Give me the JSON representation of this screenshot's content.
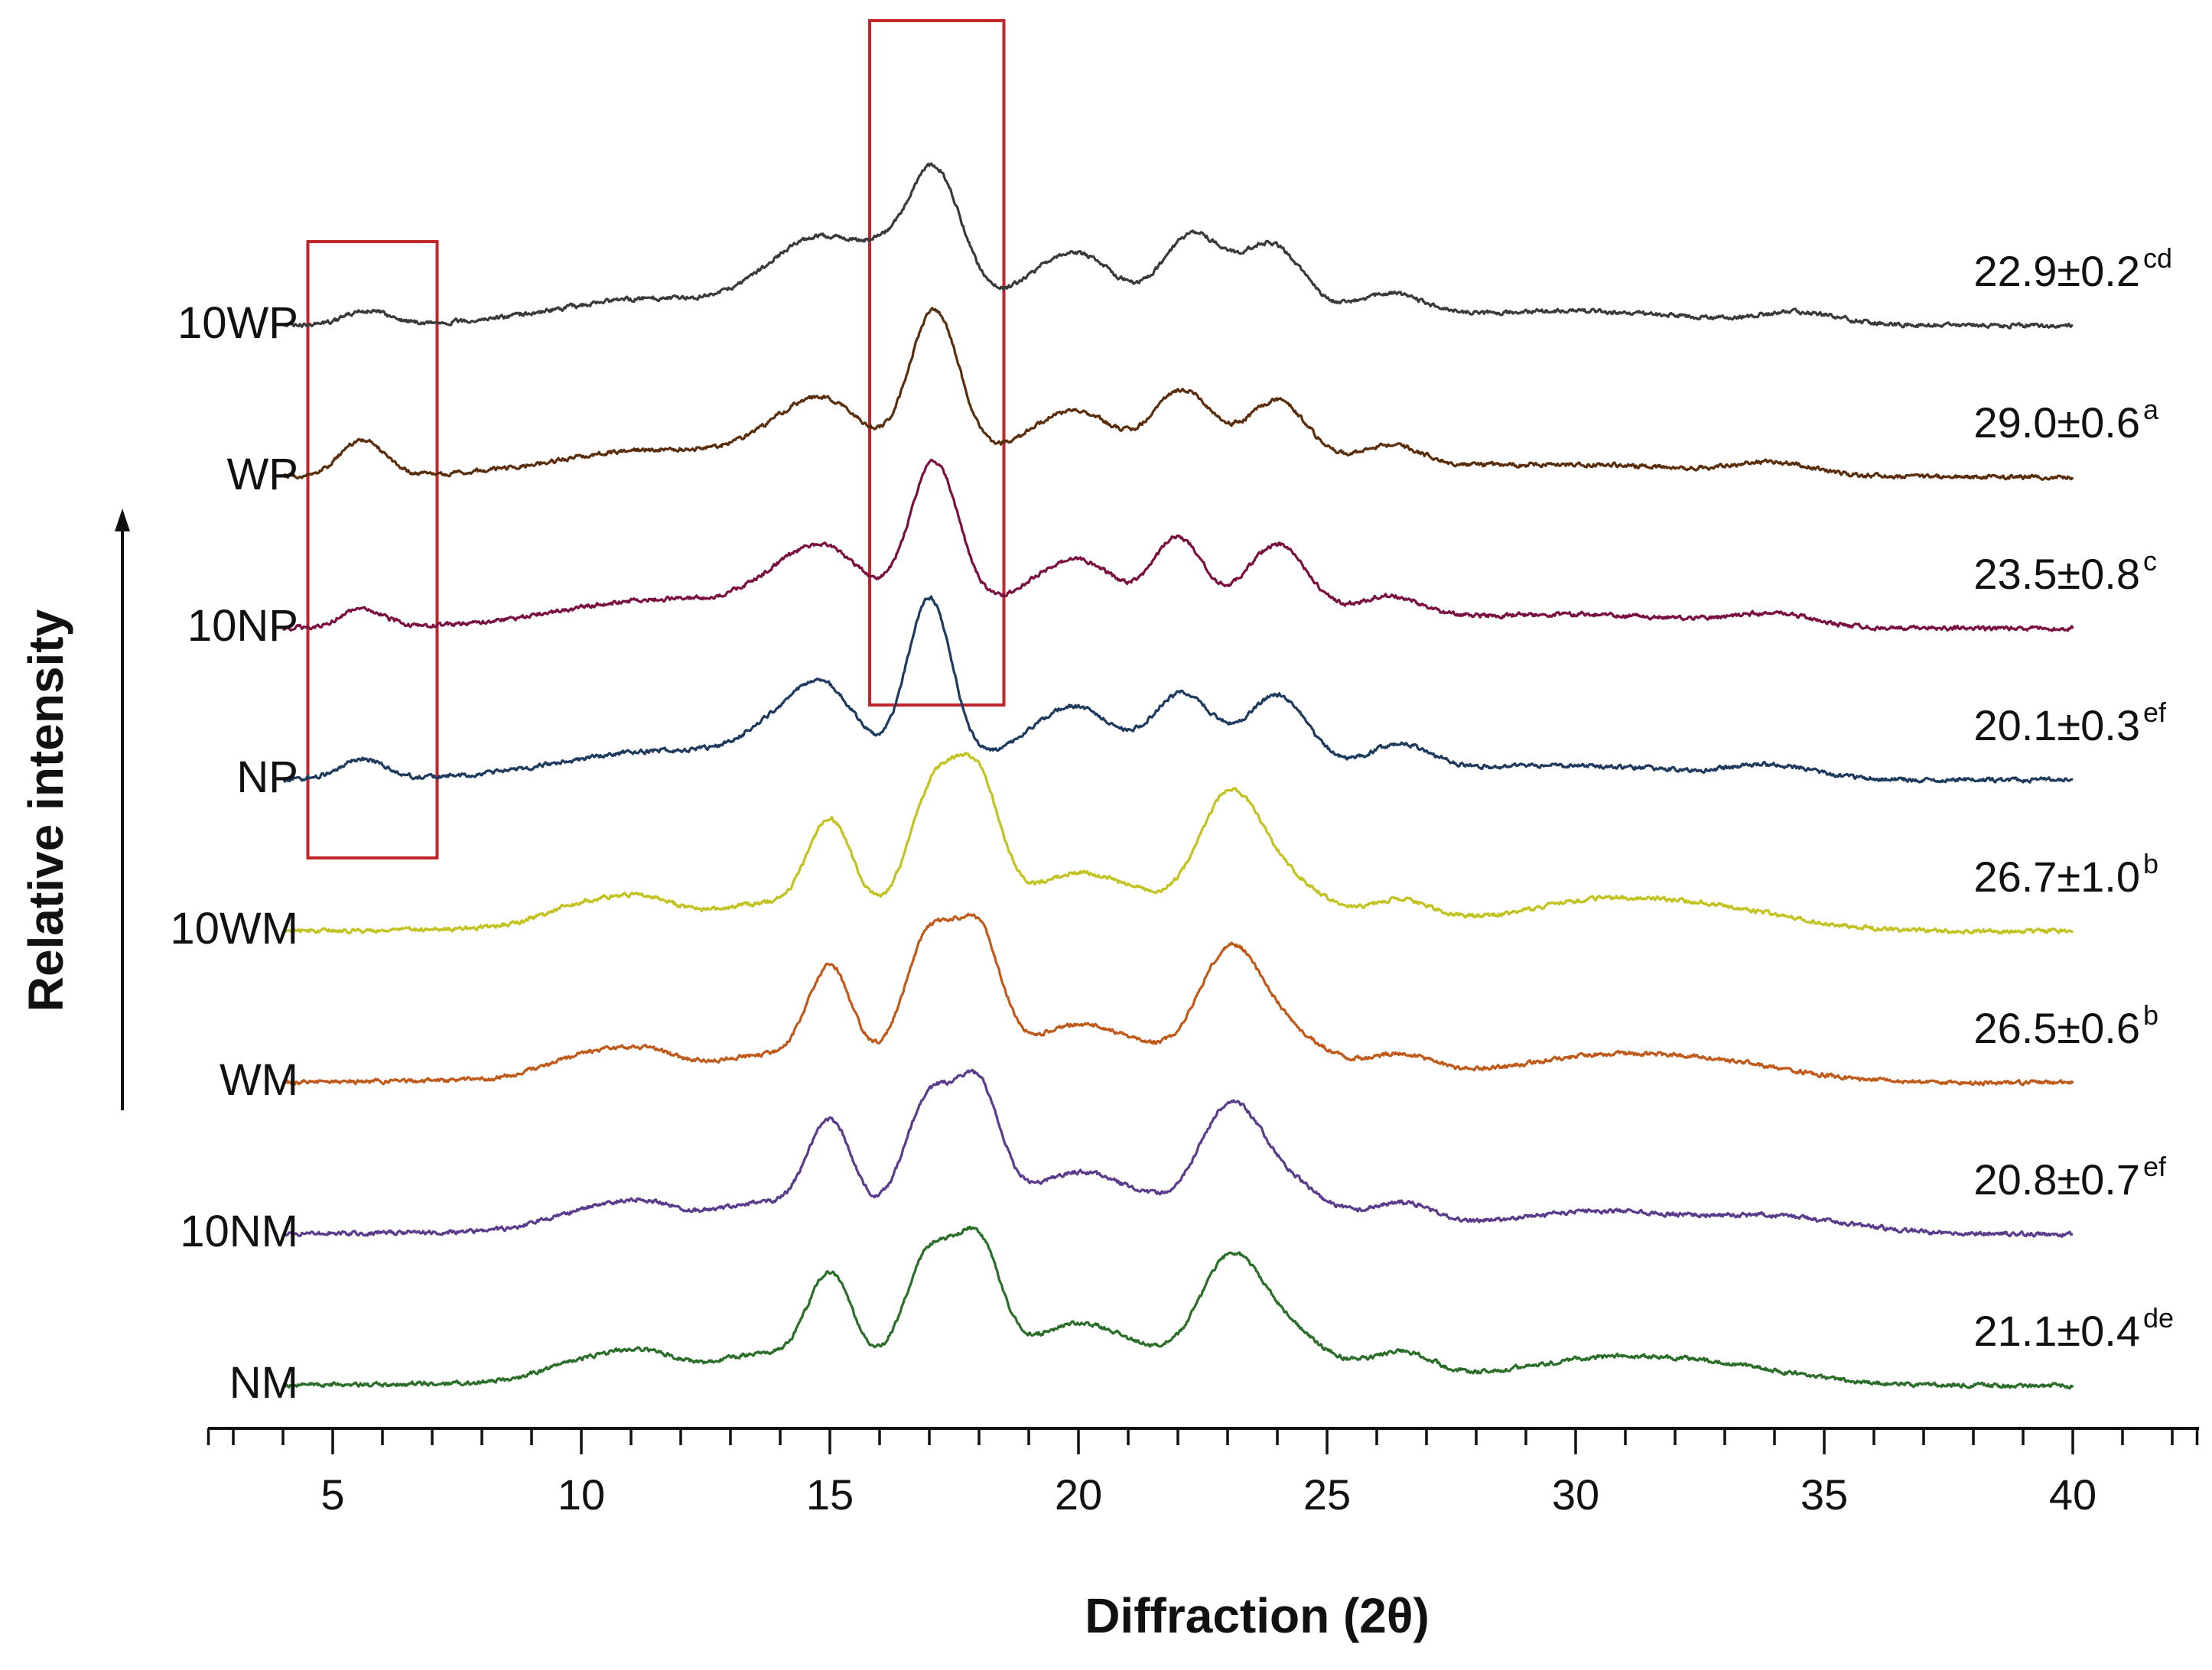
{
  "chart_data": {
    "type": "line",
    "xlabel": "Diffraction (2θ)",
    "ylabel": "Relative intensity",
    "xlim": [
      2.5,
      42.5
    ],
    "x_ticks": [
      5,
      10,
      15,
      20,
      25,
      30,
      35,
      40
    ],
    "x_start": 4,
    "x_end": 40,
    "grid": false,
    "legend": "none",
    "stacked_offset": true,
    "highlight_regions": [
      {
        "x_range": [
          4.5,
          7.1
        ],
        "covers": [
          "10WP",
          "WP",
          "10NP",
          "NP"
        ],
        "color": "#c0262a"
      },
      {
        "x_range": [
          15.8,
          18.5
        ],
        "covers": [
          "10WP",
          "WP",
          "10NP",
          "NP"
        ],
        "color": "#c0262a"
      }
    ],
    "series": [
      {
        "name": "10WP",
        "color": "#3a3a3a",
        "baseline": 7,
        "crystallinity": "22.9±0.2",
        "superscript": "cd",
        "peaks": [
          [
            5.7,
            0.17,
            0.45
          ],
          [
            10.2,
            0.12,
            1.5
          ],
          [
            12.0,
            0.18,
            1.5
          ],
          [
            14.2,
            0.52,
            0.8
          ],
          [
            15.1,
            0.55,
            0.7
          ],
          [
            16.0,
            0.4,
            0.5
          ],
          [
            17.1,
            1.73,
            0.55
          ],
          [
            19.5,
            0.45,
            0.7
          ],
          [
            20.3,
            0.35,
            0.6
          ],
          [
            22.3,
            0.9,
            0.6
          ],
          [
            23.9,
            0.8,
            0.6
          ],
          [
            26.3,
            0.25,
            0.6
          ],
          [
            30.5,
            0.12,
            2.0
          ],
          [
            34.5,
            0.14,
            0.8
          ]
        ]
      },
      {
        "name": "WP",
        "color": "#5a2d0c",
        "baseline": 6,
        "crystallinity": "29.0±0.6",
        "superscript": "a",
        "peaks": [
          [
            5.6,
            0.45,
            0.45
          ],
          [
            10.2,
            0.12,
            1.5
          ],
          [
            12.0,
            0.18,
            1.5
          ],
          [
            14.2,
            0.42,
            0.8
          ],
          [
            15.1,
            0.52,
            0.7
          ],
          [
            17.1,
            1.85,
            0.5
          ],
          [
            19.5,
            0.4,
            0.7
          ],
          [
            20.3,
            0.3,
            0.6
          ],
          [
            22.1,
            0.85,
            0.6
          ],
          [
            24.0,
            0.75,
            0.6
          ],
          [
            26.3,
            0.25,
            0.6
          ],
          [
            30.5,
            0.1,
            2.0
          ],
          [
            34.0,
            0.15,
            0.8
          ]
        ]
      },
      {
        "name": "10NP",
        "color": "#7a1040",
        "baseline": 5,
        "crystallinity": "23.5±0.8",
        "superscript": "c",
        "peaks": [
          [
            5.6,
            0.22,
            0.45
          ],
          [
            10.2,
            0.12,
            1.5
          ],
          [
            12.0,
            0.2,
            1.5
          ],
          [
            14.2,
            0.45,
            0.8
          ],
          [
            15.1,
            0.55,
            0.7
          ],
          [
            17.1,
            1.85,
            0.5
          ],
          [
            19.5,
            0.4,
            0.7
          ],
          [
            20.3,
            0.35,
            0.6
          ],
          [
            22.0,
            0.9,
            0.5
          ],
          [
            24.0,
            0.85,
            0.6
          ],
          [
            26.3,
            0.25,
            0.6
          ],
          [
            30.5,
            0.12,
            2.0
          ],
          [
            34.0,
            0.15,
            0.8
          ]
        ]
      },
      {
        "name": "NP",
        "color": "#1f3a5f",
        "baseline": 4,
        "crystallinity": "20.1±0.3",
        "superscript": "ef",
        "peaks": [
          [
            5.6,
            0.25,
            0.45
          ],
          [
            10.2,
            0.12,
            1.5
          ],
          [
            12.0,
            0.2,
            1.5
          ],
          [
            14.2,
            0.55,
            0.8
          ],
          [
            15.0,
            0.65,
            0.6
          ],
          [
            17.0,
            2.05,
            0.45
          ],
          [
            19.5,
            0.45,
            0.7
          ],
          [
            20.3,
            0.35,
            0.6
          ],
          [
            22.1,
            0.85,
            0.6
          ],
          [
            24.0,
            0.85,
            0.6
          ],
          [
            26.5,
            0.3,
            0.6
          ],
          [
            30.5,
            0.12,
            2.0
          ],
          [
            34.0,
            0.15,
            0.8
          ]
        ]
      },
      {
        "name": "10WM",
        "color": "#c2c220",
        "baseline": 3,
        "crystallinity": "26.7±1.0",
        "superscript": "b",
        "peaks": [
          [
            10.0,
            0.25,
            0.8
          ],
          [
            11.3,
            0.28,
            0.7
          ],
          [
            13.5,
            0.2,
            0.8
          ],
          [
            15.0,
            1.2,
            0.45
          ],
          [
            17.1,
            1.55,
            0.5
          ],
          [
            18.0,
            1.5,
            0.45
          ],
          [
            19.8,
            0.4,
            0.8
          ],
          [
            21.0,
            0.2,
            0.8
          ],
          [
            23.0,
            1.3,
            0.6
          ],
          [
            24.0,
            0.5,
            0.8
          ],
          [
            26.5,
            0.25,
            0.6
          ],
          [
            30.5,
            0.3,
            1.5
          ],
          [
            33.0,
            0.22,
            1.5
          ]
        ]
      },
      {
        "name": "WM",
        "color": "#c05a1a",
        "baseline": 2,
        "crystallinity": "26.5±0.6",
        "superscript": "b",
        "peaks": [
          [
            10.0,
            0.25,
            0.8
          ],
          [
            11.3,
            0.28,
            0.7
          ],
          [
            13.5,
            0.2,
            0.8
          ],
          [
            15.0,
            1.25,
            0.45
          ],
          [
            17.0,
            1.6,
            0.5
          ],
          [
            18.0,
            1.55,
            0.45
          ],
          [
            19.8,
            0.4,
            0.8
          ],
          [
            21.0,
            0.2,
            0.8
          ],
          [
            23.0,
            1.25,
            0.6
          ],
          [
            24.0,
            0.5,
            0.8
          ],
          [
            26.5,
            0.22,
            0.6
          ],
          [
            30.5,
            0.25,
            1.5
          ],
          [
            33.0,
            0.2,
            1.5
          ]
        ]
      },
      {
        "name": "10NM",
        "color": "#5b3b8c",
        "baseline": 1,
        "crystallinity": "20.8±0.7",
        "superscript": "ef",
        "peaks": [
          [
            10.0,
            0.2,
            0.8
          ],
          [
            11.3,
            0.28,
            0.7
          ],
          [
            13.5,
            0.25,
            0.8
          ],
          [
            15.0,
            1.22,
            0.45
          ],
          [
            17.0,
            1.45,
            0.5
          ],
          [
            18.0,
            1.5,
            0.45
          ],
          [
            19.8,
            0.45,
            0.8
          ],
          [
            21.0,
            0.2,
            0.8
          ],
          [
            23.0,
            1.18,
            0.6
          ],
          [
            24.0,
            0.5,
            0.8
          ],
          [
            26.5,
            0.25,
            0.6
          ],
          [
            30.5,
            0.22,
            1.5
          ],
          [
            34.0,
            0.2,
            1.5
          ]
        ]
      },
      {
        "name": "NM",
        "color": "#2a6e2a",
        "baseline": 0,
        "crystallinity": "21.1±0.4",
        "superscript": "de",
        "peaks": [
          [
            10.0,
            0.22,
            0.8
          ],
          [
            11.3,
            0.3,
            0.7
          ],
          [
            13.5,
            0.25,
            0.8
          ],
          [
            15.0,
            1.2,
            0.45
          ],
          [
            17.0,
            1.4,
            0.5
          ],
          [
            18.0,
            1.45,
            0.45
          ],
          [
            19.8,
            0.45,
            0.8
          ],
          [
            21.0,
            0.2,
            0.8
          ],
          [
            23.0,
            1.15,
            0.6
          ],
          [
            24.0,
            0.55,
            0.8
          ],
          [
            26.5,
            0.28,
            0.6
          ],
          [
            30.5,
            0.25,
            1.5
          ],
          [
            33.0,
            0.2,
            1.5
          ]
        ]
      }
    ]
  }
}
